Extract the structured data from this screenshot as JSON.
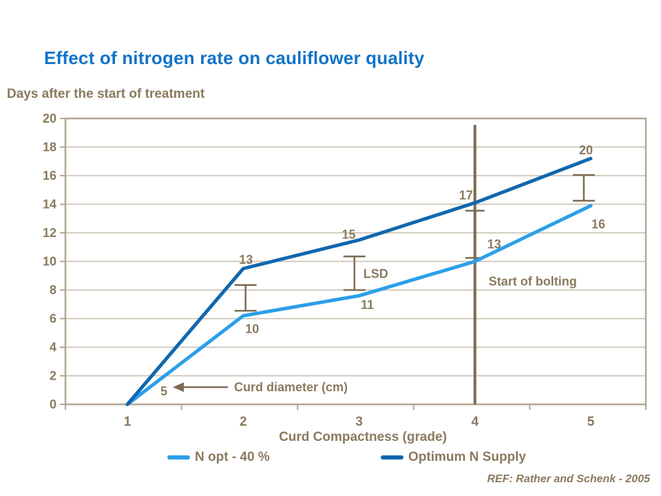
{
  "page": {
    "title": "Effect of nitrogen rate on cauliflower quality",
    "ref": "REF: Rather and Schenk - 2005"
  },
  "colors": {
    "title": "#1173C8",
    "text": "#8A7A5E",
    "grid": "#C6BCAD",
    "border": "#B2A795",
    "annotation": "#7C6B52",
    "background": "#FFFFFF"
  },
  "chart_data": {
    "type": "line",
    "title": "Effect of nitrogen rate on cauliflower quality",
    "xlabel": "Curd Compactness (grade)",
    "ylabel": "Days after the start of treatment",
    "x": [
      1,
      2,
      3,
      4,
      5
    ],
    "x_tick_labels": [
      "1",
      "2",
      "3",
      "4",
      "5"
    ],
    "y_ticks": [
      0,
      2,
      4,
      6,
      8,
      10,
      12,
      14,
      16,
      18,
      20
    ],
    "ylim": [
      0,
      20
    ],
    "grid": true,
    "legend_position": "bottom",
    "series": [
      {
        "name": "N opt - 40 %",
        "color": "#2B9FE8",
        "values": [
          0,
          6.2,
          7.6,
          10,
          13.9
        ],
        "point_labels": [
          "5",
          "10",
          "11",
          "13",
          "16"
        ]
      },
      {
        "name": "Optimum N Supply",
        "color": "#1167AE",
        "values": [
          0,
          9.5,
          11.5,
          14.1,
          17.2
        ],
        "point_labels": [
          "",
          "13",
          "15",
          "17",
          "20"
        ]
      }
    ],
    "error_bars": [
      {
        "x": 2.02,
        "y_low": 6.55,
        "y_high": 8.35,
        "label": ""
      },
      {
        "x": 2.96,
        "y_low": 8.0,
        "y_high": 10.35,
        "label": "LSD"
      },
      {
        "x": 4.94,
        "y_low": 14.25,
        "y_high": 16.05,
        "label": ""
      }
    ],
    "annotations": {
      "bolting": {
        "x": 4,
        "y_top": 19.55,
        "cross_ticks_y": [
          13.55,
          10.25
        ],
        "label": "Start of bolting",
        "label_y": 8.6
      },
      "curd_diameter": {
        "label": "Curd diameter (cm)",
        "arrow_points_to_label": "5"
      }
    }
  }
}
